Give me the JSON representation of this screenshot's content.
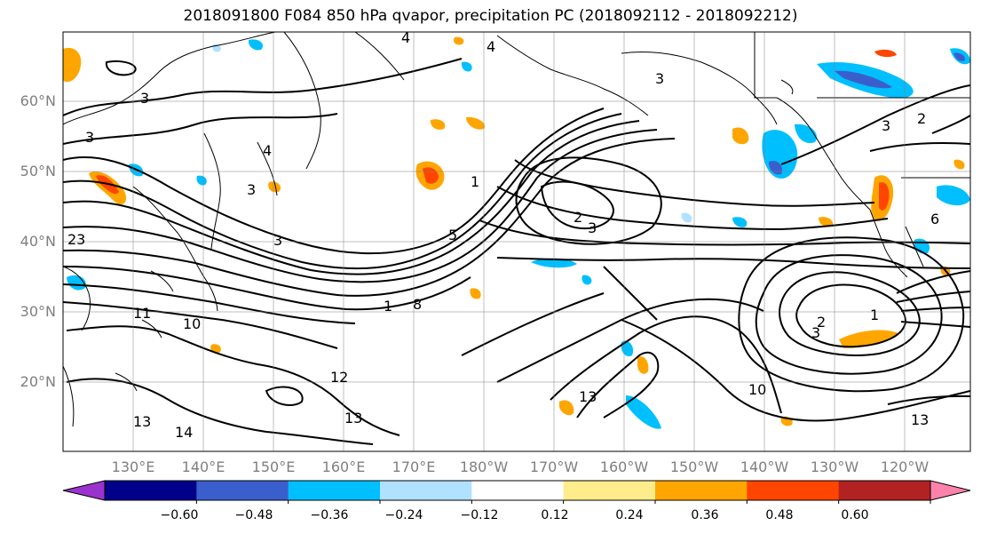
{
  "title": "2018091800 F084 850 hPa qvapor, precipitation PC (2018092112 - 2018092212)",
  "lat_labels": [
    "60°N",
    "50°N",
    "40°N",
    "30°N",
    "20°N"
  ],
  "lon_labels": [
    "130°E",
    "140°E",
    "150°E",
    "160°E",
    "170°E",
    "180°W",
    "170°W",
    "160°W",
    "150°W",
    "140°W",
    "130°W",
    "120°W"
  ],
  "contour_labels": [
    "3",
    "4",
    "4",
    "3",
    "2",
    "3",
    "3",
    "4",
    "3",
    "23",
    "3",
    "3",
    "2",
    "3",
    "11",
    "10",
    "8",
    "13",
    "13",
    "13",
    "12",
    "2",
    "1",
    "5",
    "10",
    "13",
    "14",
    "6",
    "1",
    "1"
  ],
  "colorbar": {
    "ticks": [
      "−0.60",
      "−0.48",
      "−0.36",
      "−0.24",
      "−0.12",
      "0.12",
      "0.24",
      "0.36",
      "0.48",
      "0.60"
    ],
    "colors": [
      "#9a32cd",
      "#00008b",
      "#3a5fcd",
      "#00bfff",
      "#b0e2ff",
      "#ffffff",
      "#ffec8b",
      "#ffa500",
      "#ff4500",
      "#b22222",
      "#ff82ab"
    ]
  }
}
